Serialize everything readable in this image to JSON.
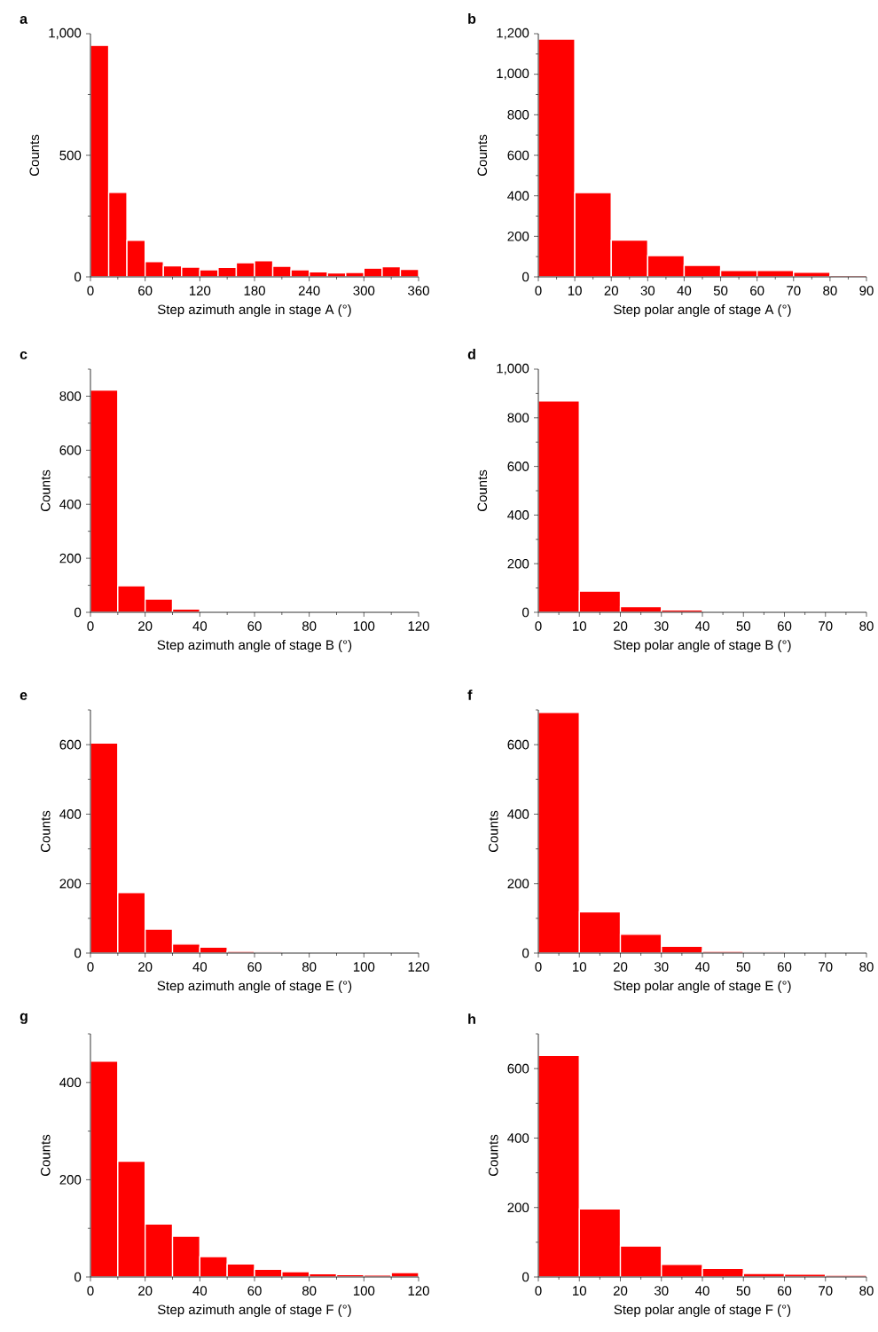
{
  "chart_data": [
    {
      "type": "histogram",
      "title": "a",
      "xlabel": "Step azimuth angle in stage A (°)",
      "ylabel": "Counts",
      "color": "#ff0000",
      "bins": [
        0,
        20,
        40,
        60,
        80,
        100,
        120,
        140,
        160,
        180,
        200,
        220,
        240,
        260,
        280,
        300,
        320,
        340,
        360
      ],
      "values": [
        952,
        347,
        150,
        63,
        45,
        40,
        29,
        39,
        58,
        66,
        44,
        29,
        21,
        16,
        18,
        36,
        42,
        31
      ],
      "xlim": [
        0,
        360
      ],
      "ylim": [
        0,
        1000
      ],
      "xticks": [
        0,
        {
          "value": 30,
          "label": null
        },
        60,
        {
          "value": 90,
          "label": null
        },
        120,
        {
          "value": 150,
          "label": null
        },
        180,
        {
          "value": 210,
          "label": null
        },
        240,
        {
          "value": 270,
          "label": null
        },
        300,
        {
          "value": 330,
          "label": null
        },
        360
      ],
      "yticks": [
        0,
        {
          "value": 250,
          "label": null
        },
        500,
        {
          "value": 750,
          "label": null
        },
        {
          "value": 1000,
          "label": "1,000"
        }
      ]
    },
    {
      "type": "histogram",
      "title": "b",
      "xlabel": "Step polar angle of stage A (°)",
      "ylabel": "Counts",
      "color": "#ff0000",
      "bins": [
        0,
        10,
        20,
        30,
        40,
        50,
        60,
        70,
        80,
        90
      ],
      "values": [
        1174,
        416,
        181,
        105,
        57,
        32,
        32,
        23,
        7
      ],
      "xlim": [
        0,
        90
      ],
      "ylim": [
        0,
        1200
      ],
      "xticks": [
        0,
        {
          "value": 5,
          "label": null
        },
        10,
        {
          "value": 15,
          "label": null
        },
        20,
        {
          "value": 25,
          "label": null
        },
        30,
        {
          "value": 35,
          "label": null
        },
        40,
        {
          "value": 45,
          "label": null
        },
        50,
        {
          "value": 55,
          "label": null
        },
        60,
        {
          "value": 65,
          "label": null
        },
        70,
        {
          "value": 75,
          "label": null
        },
        80,
        {
          "value": 85,
          "label": null
        },
        90
      ],
      "yticks": [
        0,
        {
          "value": 100,
          "label": null
        },
        200,
        {
          "value": 300,
          "label": null
        },
        400,
        {
          "value": 500,
          "label": null
        },
        600,
        {
          "value": 700,
          "label": null
        },
        800,
        {
          "value": 900,
          "label": null
        },
        {
          "value": 1000,
          "label": "1,000"
        },
        {
          "value": 1100,
          "label": null
        },
        {
          "value": 1200,
          "label": "1,200"
        }
      ]
    },
    {
      "type": "histogram",
      "title": "c",
      "xlabel": "Step azimuth angle of stage B (°)",
      "ylabel": "Counts",
      "color": "#ff0000",
      "bins": [
        0,
        10,
        20,
        30,
        40,
        50,
        60,
        70,
        80,
        90,
        100,
        110,
        120
      ],
      "values": [
        823,
        98,
        49,
        12,
        4,
        1,
        1,
        0,
        0,
        0,
        0,
        0
      ],
      "xlim": [
        0,
        120
      ],
      "ylim": [
        0,
        900
      ],
      "xticks": [
        0,
        {
          "value": 10,
          "label": null
        },
        20,
        {
          "value": 30,
          "label": null
        },
        40,
        {
          "value": 50,
          "label": null
        },
        60,
        {
          "value": 70,
          "label": null
        },
        80,
        {
          "value": 90,
          "label": null
        },
        100,
        {
          "value": 110,
          "label": null
        },
        120
      ],
      "yticks": [
        0,
        {
          "value": 100,
          "label": null
        },
        200,
        {
          "value": 300,
          "label": null
        },
        400,
        {
          "value": 500,
          "label": null
        },
        600,
        {
          "value": 700,
          "label": null
        },
        800,
        {
          "value": 900,
          "label": null
        }
      ]
    },
    {
      "type": "histogram",
      "title": "d",
      "xlabel": "Step polar angle of stage B (°)",
      "ylabel": "Counts",
      "color": "#ff0000",
      "bins": [
        0,
        10,
        20,
        30,
        40,
        50,
        60,
        70,
        80
      ],
      "values": [
        869,
        87,
        24,
        10,
        0,
        0,
        0,
        0
      ],
      "xlim": [
        0,
        80
      ],
      "ylim": [
        0,
        1000
      ],
      "xticks": [
        0,
        {
          "value": 5,
          "label": null
        },
        10,
        {
          "value": 15,
          "label": null
        },
        20,
        {
          "value": 25,
          "label": null
        },
        30,
        {
          "value": 35,
          "label": null
        },
        40,
        {
          "value": 45,
          "label": null
        },
        50,
        {
          "value": 55,
          "label": null
        },
        60,
        {
          "value": 65,
          "label": null
        },
        70,
        {
          "value": 75,
          "label": null
        },
        80
      ],
      "yticks": [
        0,
        {
          "value": 100,
          "label": null
        },
        200,
        {
          "value": 300,
          "label": null
        },
        400,
        {
          "value": 500,
          "label": null
        },
        600,
        {
          "value": 700,
          "label": null
        },
        800,
        {
          "value": 900,
          "label": null
        },
        {
          "value": 1000,
          "label": "1,000"
        }
      ]
    },
    {
      "type": "histogram",
      "title": "e",
      "xlabel": "Step azimuth angle of stage E (°)",
      "ylabel": "Counts",
      "color": "#ff0000",
      "bins": [
        0,
        10,
        20,
        30,
        40,
        50,
        60,
        70,
        80,
        90,
        100,
        110,
        120
      ],
      "values": [
        605,
        174,
        69,
        26,
        17,
        5,
        3,
        0,
        1,
        1,
        1,
        1
      ],
      "xlim": [
        0,
        120
      ],
      "ylim": [
        0,
        700
      ],
      "xticks": [
        0,
        {
          "value": 10,
          "label": null
        },
        20,
        {
          "value": 30,
          "label": null
        },
        40,
        {
          "value": 50,
          "label": null
        },
        60,
        {
          "value": 70,
          "label": null
        },
        80,
        {
          "value": 90,
          "label": null
        },
        100,
        {
          "value": 110,
          "label": null
        },
        120
      ],
      "yticks": [
        0,
        {
          "value": 100,
          "label": null
        },
        200,
        {
          "value": 300,
          "label": null
        },
        400,
        {
          "value": 500,
          "label": null
        },
        600,
        {
          "value": 700,
          "label": null
        }
      ]
    },
    {
      "type": "histogram",
      "title": "f",
      "xlabel": "Step polar angle of stage E (°)",
      "ylabel": "Counts",
      "color": "#ff0000",
      "bins": [
        0,
        10,
        20,
        30,
        40,
        50,
        60,
        70,
        80
      ],
      "values": [
        693,
        119,
        54,
        20,
        5,
        3,
        0,
        2
      ],
      "xlim": [
        0,
        80
      ],
      "ylim": [
        0,
        700
      ],
      "xticks": [
        0,
        {
          "value": 5,
          "label": null
        },
        10,
        {
          "value": 15,
          "label": null
        },
        20,
        {
          "value": 25,
          "label": null
        },
        30,
        {
          "value": 35,
          "label": null
        },
        40,
        {
          "value": 45,
          "label": null
        },
        50,
        {
          "value": 55,
          "label": null
        },
        60,
        {
          "value": 65,
          "label": null
        },
        70,
        {
          "value": 75,
          "label": null
        },
        80
      ],
      "yticks": [
        0,
        {
          "value": 100,
          "label": null
        },
        200,
        {
          "value": 300,
          "label": null
        },
        400,
        {
          "value": 500,
          "label": null
        },
        600,
        {
          "value": 700,
          "label": null
        }
      ]
    },
    {
      "type": "histogram",
      "title": "g",
      "xlabel": "Step azimuth angle of stage F (°)",
      "ylabel": "Counts",
      "color": "#ff0000",
      "bins": [
        0,
        10,
        20,
        30,
        40,
        50,
        60,
        70,
        80,
        90,
        100,
        110,
        120
      ],
      "values": [
        444,
        238,
        109,
        84,
        42,
        27,
        16,
        11,
        7,
        5,
        4,
        9
      ],
      "xlim": [
        0,
        120
      ],
      "ylim": [
        0,
        500
      ],
      "xticks": [
        0,
        {
          "value": 10,
          "label": null
        },
        20,
        {
          "value": 30,
          "label": null
        },
        40,
        {
          "value": 50,
          "label": null
        },
        60,
        {
          "value": 70,
          "label": null
        },
        80,
        {
          "value": 90,
          "label": null
        },
        100,
        {
          "value": 110,
          "label": null
        },
        120
      ],
      "yticks": [
        0,
        {
          "value": 100,
          "label": null
        },
        200,
        {
          "value": 300,
          "label": null
        },
        400,
        {
          "value": 500,
          "label": null
        }
      ]
    },
    {
      "type": "histogram",
      "title": "h",
      "xlabel": "Step polar angle of stage F (°)",
      "ylabel": "Counts",
      "color": "#ff0000",
      "bins": [
        0,
        10,
        20,
        30,
        40,
        50,
        60,
        70,
        80
      ],
      "values": [
        638,
        196,
        89,
        36,
        25,
        10,
        8,
        5
      ],
      "xlim": [
        0,
        80
      ],
      "ylim": [
        0,
        700
      ],
      "xticks": [
        0,
        {
          "value": 5,
          "label": null
        },
        10,
        {
          "value": 15,
          "label": null
        },
        20,
        {
          "value": 25,
          "label": null
        },
        30,
        {
          "value": 35,
          "label": null
        },
        40,
        {
          "value": 45,
          "label": null
        },
        50,
        {
          "value": 55,
          "label": null
        },
        60,
        {
          "value": 65,
          "label": null
        },
        70,
        {
          "value": 75,
          "label": null
        },
        80
      ],
      "yticks": [
        0,
        {
          "value": 100,
          "label": null
        },
        200,
        {
          "value": 300,
          "label": null
        },
        400,
        {
          "value": 500,
          "label": null
        },
        600,
        {
          "value": 700,
          "label": null
        }
      ]
    }
  ]
}
